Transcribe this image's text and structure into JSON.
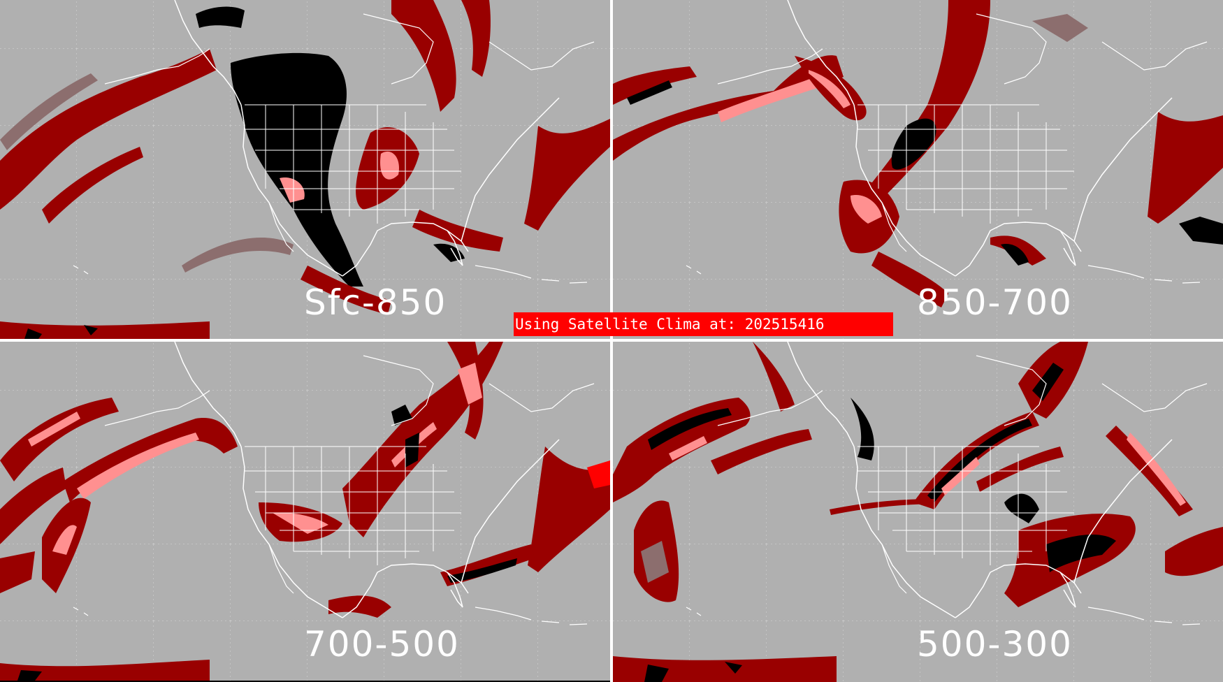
{
  "banner": {
    "text": "Using Satellite Clima at: 202515416"
  },
  "colors": {
    "background": "#b0b0b0",
    "dark_red": "#990000",
    "mauve": "#8c6e6e",
    "pink": "#ff9090",
    "black": "#000000",
    "coast": "#ffffff",
    "banner_red": "#ff0000"
  },
  "panels": [
    {
      "label": "Sfc-850"
    },
    {
      "label": "850-700"
    },
    {
      "label": "700-500"
    },
    {
      "label": "500-300"
    }
  ]
}
